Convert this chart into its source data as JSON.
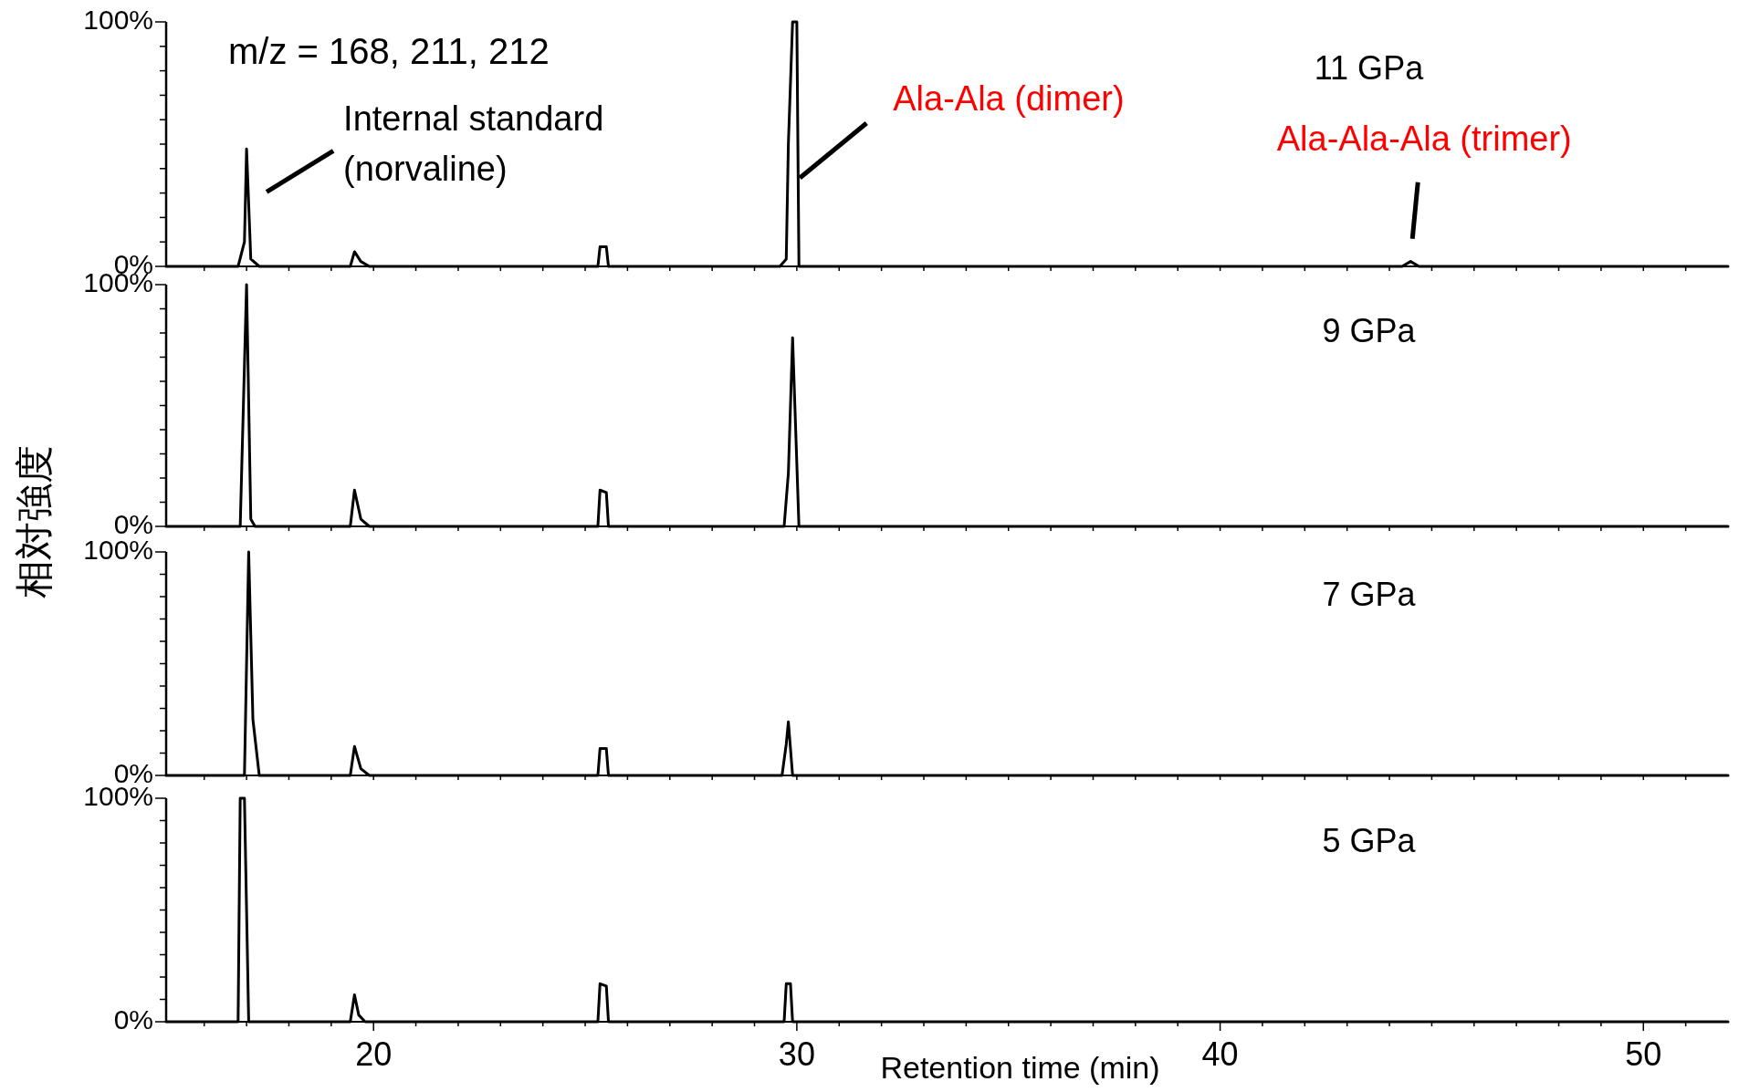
{
  "chart_data": [
    {
      "type": "line",
      "title": "11 GPa",
      "ylabel": "相対強度",
      "annotations": [
        "m/z = 168, 211, 212",
        {
          "text": "Internal standard\n(norvaline)",
          "x": 17.0,
          "y": 48
        },
        {
          "text": "Ala-Ala (dimer)",
          "x": 29.9,
          "y": 50
        },
        {
          "text": "Ala-Ala-Ala (trimer)",
          "x": 44.5,
          "y": 2
        }
      ],
      "tick_labels": "y",
      "xlim": [
        15.1,
        52
      ],
      "ylim": [
        0,
        100
      ],
      "xticks": [
        {
          "value": 16,
          "label": null
        },
        {
          "value": 17,
          "label": null
        },
        {
          "value": 18,
          "label": null
        },
        {
          "value": 19,
          "label": null
        },
        {
          "value": 20,
          "label": null
        },
        {
          "value": 21,
          "label": null
        },
        {
          "value": 22,
          "label": null
        },
        {
          "value": 23,
          "label": null
        },
        {
          "value": 24,
          "label": null
        },
        {
          "value": 25,
          "label": null
        },
        {
          "value": 26,
          "label": null
        },
        {
          "value": 27,
          "label": null
        },
        {
          "value": 28,
          "label": null
        },
        {
          "value": 29,
          "label": null
        },
        {
          "value": 30,
          "label": null
        },
        {
          "value": 31,
          "label": null
        },
        {
          "value": 32,
          "label": null
        },
        {
          "value": 33,
          "label": null
        },
        {
          "value": 34,
          "label": null
        },
        {
          "value": 35,
          "label": null
        },
        {
          "value": 36,
          "label": null
        },
        {
          "value": 37,
          "label": null
        },
        {
          "value": 38,
          "label": null
        },
        {
          "value": 39,
          "label": null
        },
        {
          "value": 40,
          "label": null
        },
        {
          "value": 41,
          "label": null
        },
        {
          "value": 42,
          "label": null
        },
        {
          "value": 43,
          "label": null
        },
        {
          "value": 44,
          "label": null
        },
        {
          "value": 45,
          "label": null
        },
        {
          "value": 46,
          "label": null
        },
        {
          "value": 47,
          "label": null
        },
        {
          "value": 48,
          "label": null
        },
        {
          "value": 49,
          "label": null
        },
        {
          "value": 50,
          "label": null
        },
        {
          "value": 51,
          "label": null
        }
      ],
      "yticks": [
        {
          "value": 0,
          "label": "0%"
        },
        {
          "value": 10,
          "label": null
        },
        {
          "value": 20,
          "label": null
        },
        {
          "value": 30,
          "label": null
        },
        {
          "value": 40,
          "label": null
        },
        {
          "value": 50,
          "label": null
        },
        {
          "value": 60,
          "label": null
        },
        {
          "value": 70,
          "label": null
        },
        {
          "value": 80,
          "label": null
        },
        {
          "value": 90,
          "label": null
        },
        {
          "value": 100,
          "label": "100%"
        }
      ],
      "series": [
        {
          "color": "#000000",
          "x": [
            15.1,
            16.8,
            16.95,
            17.0,
            17.1,
            17.3,
            19.45,
            19.55,
            19.7,
            19.9,
            25.3,
            25.35,
            25.5,
            25.55,
            29.6,
            29.75,
            29.8,
            29.9,
            30.0,
            30.05,
            44.3,
            44.5,
            44.7,
            52
          ],
          "values": [
            0,
            0,
            10,
            48,
            3,
            0,
            0,
            6,
            2,
            0,
            0,
            8,
            8,
            0,
            0,
            3,
            50,
            100,
            100,
            0,
            0,
            2,
            0,
            0
          ]
        }
      ]
    },
    {
      "type": "line",
      "title": "9 GPa",
      "tick_labels": "y",
      "xlim": [
        15.1,
        52
      ],
      "ylim": [
        0,
        100
      ],
      "xticks": [
        {
          "value": 16,
          "label": null
        },
        {
          "value": 17,
          "label": null
        },
        {
          "value": 18,
          "label": null
        },
        {
          "value": 19,
          "label": null
        },
        {
          "value": 20,
          "label": null
        },
        {
          "value": 21,
          "label": null
        },
        {
          "value": 22,
          "label": null
        },
        {
          "value": 23,
          "label": null
        },
        {
          "value": 24,
          "label": null
        },
        {
          "value": 25,
          "label": null
        },
        {
          "value": 26,
          "label": null
        },
        {
          "value": 27,
          "label": null
        },
        {
          "value": 28,
          "label": null
        },
        {
          "value": 29,
          "label": null
        },
        {
          "value": 30,
          "label": null
        },
        {
          "value": 31,
          "label": null
        },
        {
          "value": 32,
          "label": null
        },
        {
          "value": 33,
          "label": null
        },
        {
          "value": 34,
          "label": null
        },
        {
          "value": 35,
          "label": null
        },
        {
          "value": 36,
          "label": null
        },
        {
          "value": 37,
          "label": null
        },
        {
          "value": 38,
          "label": null
        },
        {
          "value": 39,
          "label": null
        },
        {
          "value": 40,
          "label": null
        },
        {
          "value": 41,
          "label": null
        },
        {
          "value": 42,
          "label": null
        },
        {
          "value": 43,
          "label": null
        },
        {
          "value": 44,
          "label": null
        },
        {
          "value": 45,
          "label": null
        },
        {
          "value": 46,
          "label": null
        },
        {
          "value": 47,
          "label": null
        },
        {
          "value": 48,
          "label": null
        },
        {
          "value": 49,
          "label": null
        },
        {
          "value": 50,
          "label": null
        },
        {
          "value": 51,
          "label": null
        }
      ],
      "yticks": [
        {
          "value": 0,
          "label": "0%"
        },
        {
          "value": 10,
          "label": null
        },
        {
          "value": 20,
          "label": null
        },
        {
          "value": 30,
          "label": null
        },
        {
          "value": 40,
          "label": null
        },
        {
          "value": 50,
          "label": null
        },
        {
          "value": 60,
          "label": null
        },
        {
          "value": 70,
          "label": null
        },
        {
          "value": 80,
          "label": null
        },
        {
          "value": 90,
          "label": null
        },
        {
          "value": 100,
          "label": "100%"
        }
      ],
      "series": [
        {
          "color": "#000000",
          "x": [
            15.1,
            16.85,
            17.0,
            17.1,
            17.2,
            19.45,
            19.55,
            19.7,
            19.9,
            25.3,
            25.35,
            25.5,
            25.55,
            29.7,
            29.8,
            29.9,
            30.05,
            52
          ],
          "values": [
            0,
            0,
            100,
            3,
            0,
            0,
            15,
            3,
            0,
            0,
            15,
            14,
            0,
            0,
            22,
            78,
            0,
            0
          ]
        }
      ]
    },
    {
      "type": "line",
      "title": "7 GPa",
      "tick_labels": "y",
      "xlim": [
        15.1,
        52
      ],
      "ylim": [
        0,
        100
      ],
      "xticks": [
        {
          "value": 16,
          "label": null
        },
        {
          "value": 17,
          "label": null
        },
        {
          "value": 18,
          "label": null
        },
        {
          "value": 19,
          "label": null
        },
        {
          "value": 20,
          "label": null
        },
        {
          "value": 21,
          "label": null
        },
        {
          "value": 22,
          "label": null
        },
        {
          "value": 23,
          "label": null
        },
        {
          "value": 24,
          "label": null
        },
        {
          "value": 25,
          "label": null
        },
        {
          "value": 26,
          "label": null
        },
        {
          "value": 27,
          "label": null
        },
        {
          "value": 28,
          "label": null
        },
        {
          "value": 29,
          "label": null
        },
        {
          "value": 30,
          "label": null
        },
        {
          "value": 31,
          "label": null
        },
        {
          "value": 32,
          "label": null
        },
        {
          "value": 33,
          "label": null
        },
        {
          "value": 34,
          "label": null
        },
        {
          "value": 35,
          "label": null
        },
        {
          "value": 36,
          "label": null
        },
        {
          "value": 37,
          "label": null
        },
        {
          "value": 38,
          "label": null
        },
        {
          "value": 39,
          "label": null
        },
        {
          "value": 40,
          "label": null
        },
        {
          "value": 41,
          "label": null
        },
        {
          "value": 42,
          "label": null
        },
        {
          "value": 43,
          "label": null
        },
        {
          "value": 44,
          "label": null
        },
        {
          "value": 45,
          "label": null
        },
        {
          "value": 46,
          "label": null
        },
        {
          "value": 47,
          "label": null
        },
        {
          "value": 48,
          "label": null
        },
        {
          "value": 49,
          "label": null
        },
        {
          "value": 50,
          "label": null
        },
        {
          "value": 51,
          "label": null
        }
      ],
      "yticks": [
        {
          "value": 0,
          "label": "0%"
        },
        {
          "value": 10,
          "label": null
        },
        {
          "value": 20,
          "label": null
        },
        {
          "value": 30,
          "label": null
        },
        {
          "value": 40,
          "label": null
        },
        {
          "value": 50,
          "label": null
        },
        {
          "value": 60,
          "label": null
        },
        {
          "value": 70,
          "label": null
        },
        {
          "value": 80,
          "label": null
        },
        {
          "value": 90,
          "label": null
        },
        {
          "value": 100,
          "label": "100%"
        }
      ],
      "series": [
        {
          "color": "#000000",
          "x": [
            15.1,
            16.95,
            17.05,
            17.15,
            17.3,
            19.45,
            19.55,
            19.7,
            19.9,
            25.3,
            25.35,
            25.5,
            25.55,
            29.65,
            29.75,
            29.8,
            29.9,
            52
          ],
          "values": [
            0,
            0,
            100,
            25,
            0,
            0,
            13,
            3,
            0,
            0,
            12,
            12,
            0,
            0,
            14,
            24,
            0,
            0
          ]
        }
      ]
    },
    {
      "type": "line",
      "title": "5 GPa",
      "xlabel": "Retention time (min)",
      "xlim": [
        15.1,
        52
      ],
      "ylim": [
        0,
        100
      ],
      "xticks": [
        {
          "value": 16,
          "label": null
        },
        {
          "value": 17,
          "label": null
        },
        {
          "value": 18,
          "label": null
        },
        {
          "value": 19,
          "label": null
        },
        20,
        {
          "value": 21,
          "label": null
        },
        {
          "value": 22,
          "label": null
        },
        {
          "value": 23,
          "label": null
        },
        {
          "value": 24,
          "label": null
        },
        {
          "value": 25,
          "label": null
        },
        {
          "value": 26,
          "label": null
        },
        {
          "value": 27,
          "label": null
        },
        {
          "value": 28,
          "label": null
        },
        {
          "value": 29,
          "label": null
        },
        30,
        {
          "value": 31,
          "label": null
        },
        {
          "value": 32,
          "label": null
        },
        {
          "value": 33,
          "label": null
        },
        {
          "value": 34,
          "label": null
        },
        {
          "value": 35,
          "label": null
        },
        {
          "value": 36,
          "label": null
        },
        {
          "value": 37,
          "label": null
        },
        {
          "value": 38,
          "label": null
        },
        {
          "value": 39,
          "label": null
        },
        40,
        {
          "value": 41,
          "label": null
        },
        {
          "value": 42,
          "label": null
        },
        {
          "value": 43,
          "label": null
        },
        {
          "value": 44,
          "label": null
        },
        {
          "value": 45,
          "label": null
        },
        {
          "value": 46,
          "label": null
        },
        {
          "value": 47,
          "label": null
        },
        {
          "value": 48,
          "label": null
        },
        {
          "value": 49,
          "label": null
        },
        50,
        {
          "value": 51,
          "label": null
        }
      ],
      "yticks": [
        {
          "value": 0,
          "label": "0%"
        },
        {
          "value": 10,
          "label": null
        },
        {
          "value": 20,
          "label": null
        },
        {
          "value": 30,
          "label": null
        },
        {
          "value": 40,
          "label": null
        },
        {
          "value": 50,
          "label": null
        },
        {
          "value": 60,
          "label": null
        },
        {
          "value": 70,
          "label": null
        },
        {
          "value": 80,
          "label": null
        },
        {
          "value": 90,
          "label": null
        },
        {
          "value": 100,
          "label": "100%"
        }
      ],
      "series": [
        {
          "color": "#000000",
          "x": [
            15.1,
            16.8,
            16.85,
            16.95,
            17.05,
            19.45,
            19.55,
            19.65,
            19.8,
            25.3,
            25.35,
            25.5,
            25.55,
            29.7,
            29.75,
            29.85,
            29.9,
            52
          ],
          "values": [
            0,
            0,
            100,
            100,
            0,
            0,
            12,
            3,
            0,
            0,
            17,
            16,
            0,
            0,
            17,
            17,
            0,
            0
          ]
        }
      ]
    }
  ]
}
